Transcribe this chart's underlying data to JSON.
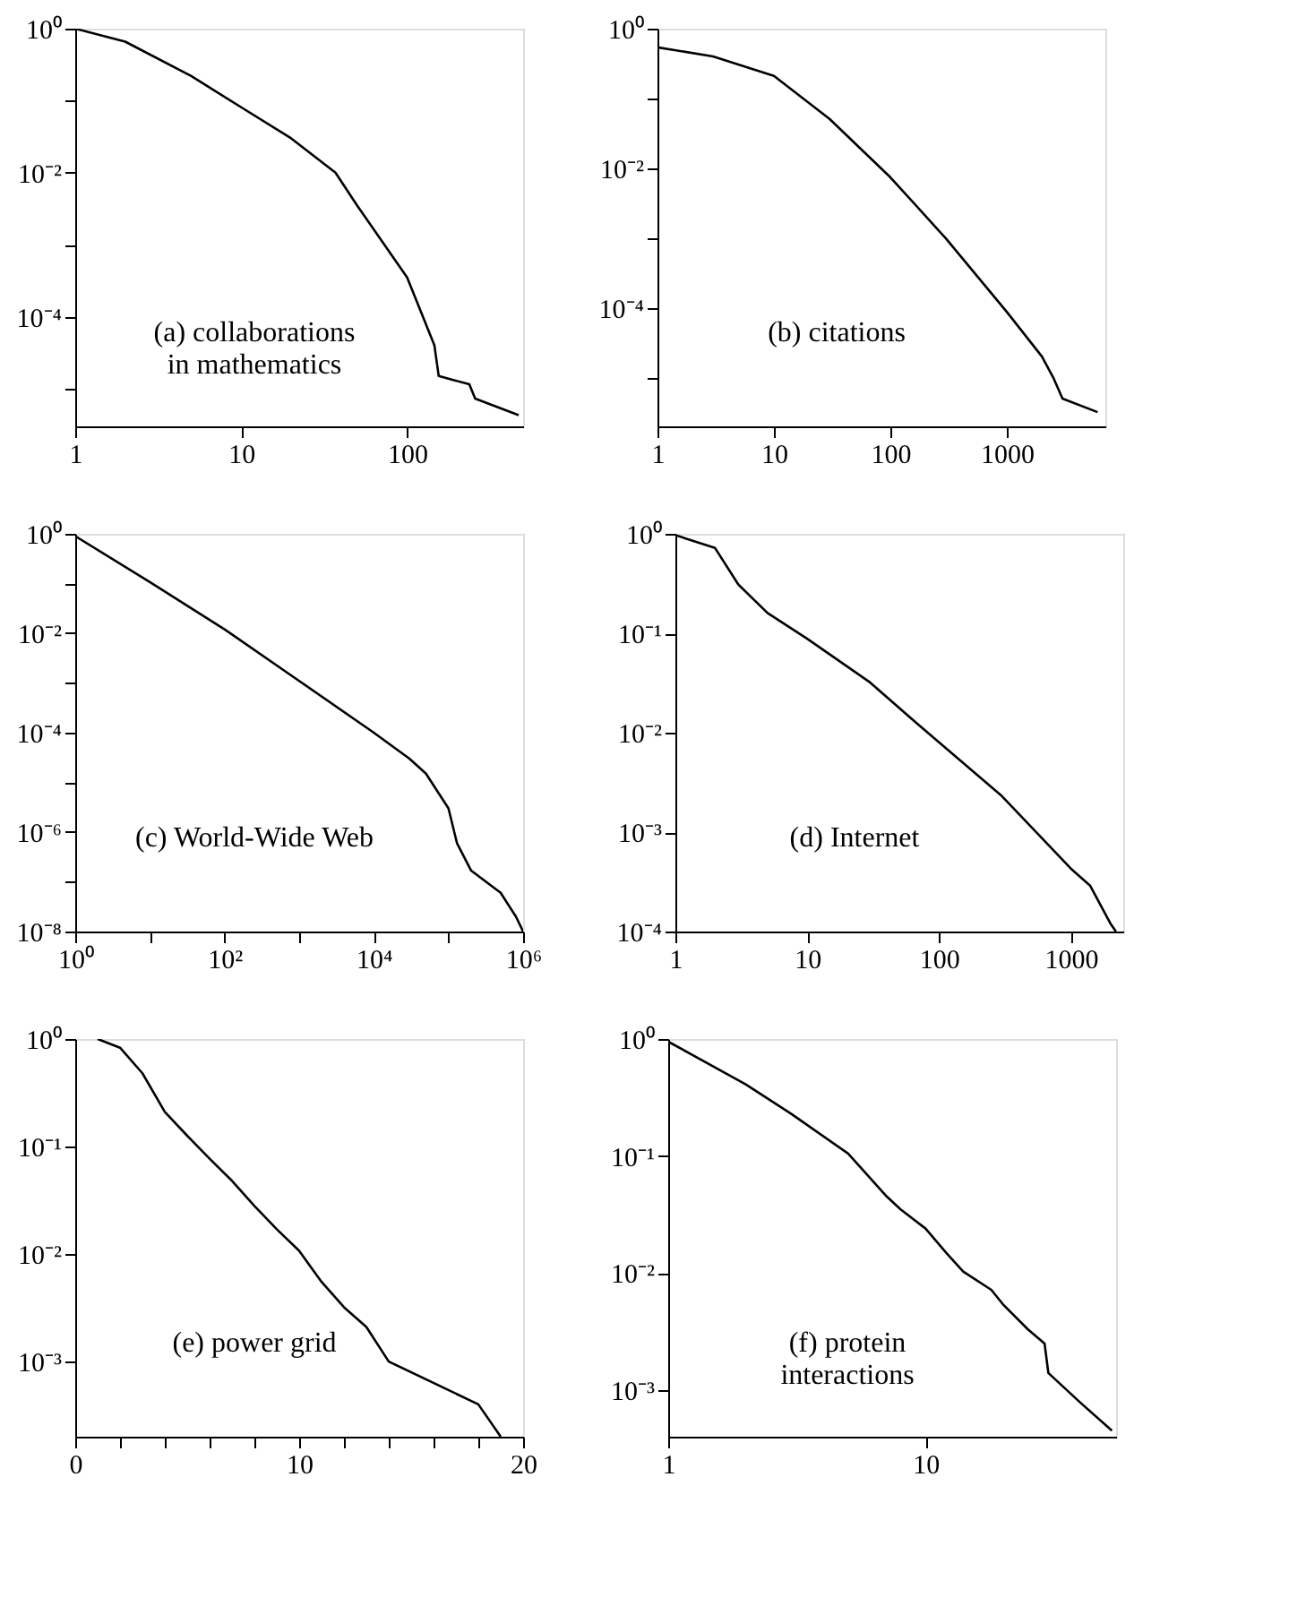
{
  "chart_data": [
    {
      "type": "line",
      "log": "xy",
      "xlim": [
        1,
        500
      ],
      "ylim": [
        3e-06,
        1
      ],
      "xticks": [
        1,
        10,
        100
      ],
      "yticks": [
        {
          "value": 1,
          "label": "10⁰"
        },
        {
          "value": 0.1,
          "label": null
        },
        {
          "value": 0.01,
          "label": "10⁻²"
        },
        {
          "value": 0.001,
          "label": null
        },
        {
          "value": 0.0001,
          "label": "10⁻⁴"
        },
        {
          "value": 1e-05,
          "label": null
        }
      ],
      "annotations": [
        "(a) collaborations\nin mathematics"
      ],
      "x": [
        1,
        2,
        5,
        10,
        20,
        37,
        50,
        100,
        146,
        155,
        237,
        257,
        470
      ],
      "series": [
        {
          "color": "#000000",
          "values": [
            1,
            0.66,
            0.22,
            0.081,
            0.03,
            0.01,
            0.0035,
            0.00035,
            4e-05,
            1.5e-05,
            1.15e-05,
            7.3e-06,
            4.3e-06
          ]
        }
      ]
    },
    {
      "type": "line",
      "log": "xy",
      "xlim": [
        1,
        7000
      ],
      "ylim": [
        2e-06,
        1
      ],
      "xticks": [
        1,
        10,
        100,
        1000
      ],
      "yticks": [
        {
          "value": 1,
          "label": "10⁰"
        },
        {
          "value": 0.1,
          "label": null
        },
        {
          "value": 0.01,
          "label": "10⁻²"
        },
        {
          "value": 0.001,
          "label": null
        },
        {
          "value": 0.0001,
          "label": "10⁻⁴"
        },
        {
          "value": 1e-05,
          "label": null
        }
      ],
      "annotations": [
        "(b) citations"
      ],
      "x": [
        1,
        3,
        10,
        30,
        100,
        300,
        1000,
        2000,
        2500,
        3000,
        6000
      ],
      "series": [
        {
          "color": "#000000",
          "values": [
            0.54,
            0.4,
            0.21,
            0.051,
            0.0074,
            0.00098,
            8.7e-05,
            2e-05,
            1e-05,
            5e-06,
            3.2e-06
          ]
        }
      ]
    },
    {
      "type": "line",
      "log": "xy",
      "xlim": [
        1,
        1000000
      ],
      "ylim": [
        1e-08,
        1
      ],
      "xticks": [
        {
          "value": 1,
          "label": "10⁰"
        },
        {
          "value": 10,
          "label": null
        },
        {
          "value": 100,
          "label": "10²"
        },
        {
          "value": 1000,
          "label": null
        },
        {
          "value": 10000,
          "label": "10⁴"
        },
        {
          "value": 100000,
          "label": null
        },
        {
          "value": 1000000,
          "label": "10⁶"
        }
      ],
      "yticks": [
        {
          "value": 1,
          "label": "10⁰"
        },
        {
          "value": 0.1,
          "label": null
        },
        {
          "value": 0.01,
          "label": "10⁻²"
        },
        {
          "value": 0.001,
          "label": null
        },
        {
          "value": 0.0001,
          "label": "10⁻⁴"
        },
        {
          "value": 1e-05,
          "label": null
        },
        {
          "value": 1e-06,
          "label": "10⁻⁶"
        },
        {
          "value": 1e-07,
          "label": null
        },
        {
          "value": 1e-08,
          "label": "10⁻⁸"
        }
      ],
      "annotations": [
        "(c) World-Wide Web"
      ],
      "x": [
        1,
        10,
        100,
        1000,
        10000,
        30000,
        50000,
        100000,
        130000,
        200000,
        500000,
        800000,
        1000000
      ],
      "series": [
        {
          "color": "#000000",
          "values": [
            0.9,
            0.107,
            0.012,
            0.0011,
            0.0001,
            3e-05,
            1.5e-05,
            3e-06,
            6e-07,
            1.7e-07,
            6e-08,
            2e-08,
            1e-08
          ]
        }
      ]
    },
    {
      "type": "line",
      "log": "xy",
      "xlim": [
        1,
        2500
      ],
      "ylim": [
        0.0001,
        1
      ],
      "xticks": [
        1,
        10,
        100,
        1000
      ],
      "yticks": [
        {
          "value": 1,
          "label": "10⁰"
        },
        {
          "value": 0.1,
          "label": "10⁻¹"
        },
        {
          "value": 0.01,
          "label": "10⁻²"
        },
        {
          "value": 0.001,
          "label": "10⁻³"
        },
        {
          "value": 0.0001,
          "label": "10⁻⁴"
        }
      ],
      "annotations": [
        "(d) Internet"
      ],
      "x": [
        1,
        2,
        3,
        5,
        10,
        30,
        70,
        100,
        300,
        1000,
        1400,
        2000,
        2200
      ],
      "series": [
        {
          "color": "#000000",
          "values": [
            0.97,
            0.72,
            0.31,
            0.16,
            0.088,
            0.032,
            0.012,
            0.008,
            0.0023,
            0.00043,
            0.00029,
            0.00012,
            0.0001
          ]
        }
      ]
    },
    {
      "type": "line",
      "log": "y",
      "xlim": [
        0,
        20
      ],
      "ylim": [
        0.0002,
        1
      ],
      "xticks": [
        0,
        {
          "value": 2,
          "label": null
        },
        {
          "value": 4,
          "label": null
        },
        {
          "value": 6,
          "label": null
        },
        {
          "value": 8,
          "label": null
        },
        10,
        {
          "value": 12,
          "label": null
        },
        {
          "value": 14,
          "label": null
        },
        {
          "value": 16,
          "label": null
        },
        {
          "value": 18,
          "label": null
        },
        20
      ],
      "yticks": [
        {
          "value": 1,
          "label": "10⁰"
        },
        {
          "value": 0.1,
          "label": "10⁻¹"
        },
        {
          "value": 0.01,
          "label": "10⁻²"
        },
        {
          "value": 0.001,
          "label": "10⁻³"
        }
      ],
      "annotations": [
        "(e) power grid"
      ],
      "x": [
        1,
        2,
        3,
        4,
        5,
        6,
        7,
        8,
        9,
        10,
        11,
        12,
        13,
        14,
        18,
        19
      ],
      "series": [
        {
          "color": "#000000",
          "values": [
            1,
            0.83,
            0.48,
            0.21,
            0.126,
            0.077,
            0.048,
            0.028,
            0.017,
            0.0107,
            0.0055,
            0.0032,
            0.0021,
            0.001,
            0.0004,
            0.0002
          ]
        }
      ]
    },
    {
      "type": "line",
      "log": "xy",
      "xlim": [
        1,
        55
      ],
      "ylim": [
        0.0004,
        1
      ],
      "xticks": [
        1,
        10
      ],
      "yticks": [
        {
          "value": 1,
          "label": "10⁰"
        },
        {
          "value": 0.1,
          "label": "10⁻¹"
        },
        {
          "value": 0.01,
          "label": "10⁻²"
        },
        {
          "value": 0.001,
          "label": "10⁻³"
        }
      ],
      "annotations": [
        "(f) protein\ninteractions"
      ],
      "x": [
        1,
        2,
        3,
        5,
        7,
        8,
        10,
        12,
        14,
        18,
        20,
        25,
        29,
        30,
        40,
        53
      ],
      "series": [
        {
          "color": "#000000",
          "values": [
            0.95,
            0.41,
            0.23,
            0.105,
            0.046,
            0.035,
            0.024,
            0.015,
            0.0103,
            0.0072,
            0.0054,
            0.0033,
            0.0025,
            0.0014,
            0.00078,
            0.00045
          ]
        }
      ]
    }
  ]
}
